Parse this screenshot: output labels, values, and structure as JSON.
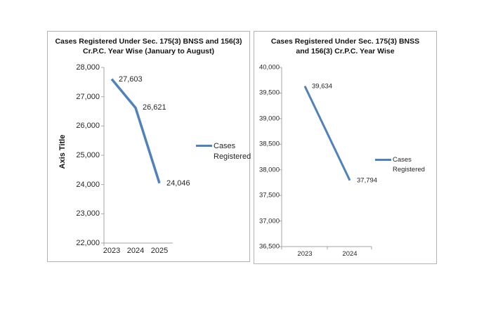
{
  "chart_data": [
    {
      "type": "line",
      "title": "Cases Registered Under Sec. 175(3) BNSS and 156(3) Cr.P.C. Year Wise (January to August)",
      "title_lines": [
        "Cases Registered Under Sec. 175(3) BNSS and 156(3)",
        "Cr.P.C. Year Wise (January to August)"
      ],
      "xlabel": "",
      "ylabel": "Axis Title",
      "categories": [
        "2023",
        "2024",
        "2025"
      ],
      "series": [
        {
          "name": "Cases Registered",
          "values": [
            27603,
            26621,
            24046
          ]
        }
      ],
      "data_labels": [
        "27,603",
        "26,621",
        "24,046"
      ],
      "ylim": [
        22000,
        28000
      ],
      "y_tick_values": [
        28000,
        27000,
        26000,
        25000,
        24000,
        23000,
        22000
      ],
      "y_tick_labels": [
        "28,000",
        "27,000",
        "26,000",
        "25,000",
        "24,000",
        "23,000",
        "22,000"
      ],
      "legend_position": "right",
      "legend_lines": [
        "Cases",
        "Registered"
      ],
      "line_color": "#4F81BD",
      "grid": false
    },
    {
      "type": "line",
      "title": "Cases Registered Under Sec. 175(3) BNSS and 156(3) Cr.P.C. Year Wise",
      "title_lines": [
        "Cases Registered Under Sec. 175(3) BNSS",
        "and 156(3) Cr.P.C. Year Wise"
      ],
      "xlabel": "",
      "ylabel": "",
      "categories": [
        "2023",
        "2024"
      ],
      "series": [
        {
          "name": "Cases Registered",
          "values": [
            39634,
            37794
          ]
        }
      ],
      "data_labels": [
        "39,634",
        "37,794"
      ],
      "ylim": [
        36500,
        40000
      ],
      "y_tick_values": [
        40000,
        39500,
        39000,
        38500,
        38000,
        37500,
        37000,
        36500
      ],
      "y_tick_labels": [
        "40,000",
        "39,500",
        "39,000",
        "38,500",
        "38,000",
        "37,500",
        "37,000",
        "36,500"
      ],
      "legend_position": "right",
      "legend_lines": [
        "Cases",
        "Registered"
      ],
      "line_color": "#4F81BD",
      "grid": false
    }
  ],
  "colors": {
    "axis": "#a6a6a6",
    "box_border": "#b3b3b3",
    "line": "#4F81BD"
  }
}
